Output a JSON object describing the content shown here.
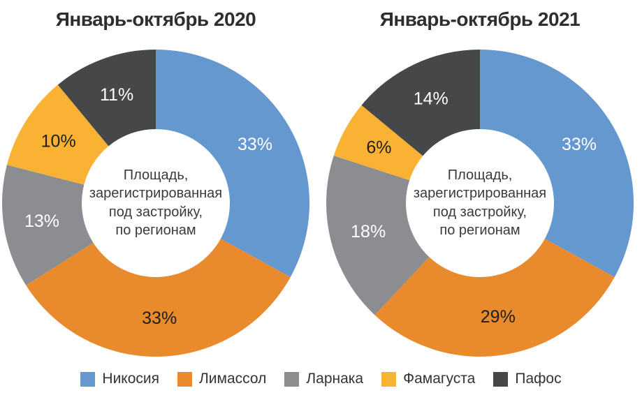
{
  "chart_data": [
    {
      "type": "pie",
      "variant": "donut",
      "title": "Январь-октябрь 2020",
      "center_label_lines": [
        "Площадь,",
        "зарегистрированная",
        "под застройку,",
        "по регионам"
      ],
      "categories": [
        "Никосия",
        "Лимассол",
        "Ларнака",
        "Фамагуста",
        "Пафос"
      ],
      "values": [
        33,
        33,
        13,
        10,
        11
      ],
      "unit": "%",
      "data_labels": [
        "33%",
        "33%",
        "13%",
        "10%",
        "11%"
      ],
      "colors": [
        "#6598CE",
        "#E98B2D",
        "#8B8D90",
        "#F9B234",
        "#464749"
      ],
      "data_label_colors": [
        "#ffffff",
        "#1f1f1f",
        "#ffffff",
        "#1f1f1f",
        "#ffffff"
      ],
      "start_angle_deg": 0,
      "direction": "clockwise",
      "legend_position": "bottom-shared"
    },
    {
      "type": "pie",
      "variant": "donut",
      "title": "Январь-октябрь 2021",
      "center_label_lines": [
        "Площадь,",
        "зарегистрированная",
        "под застройку,",
        "по регионам"
      ],
      "categories": [
        "Никосия",
        "Лимассол",
        "Ларнака",
        "Фамагуста",
        "Пафос"
      ],
      "values": [
        33,
        29,
        18,
        6,
        14
      ],
      "unit": "%",
      "data_labels": [
        "33%",
        "29%",
        "18%",
        "6%",
        "14%"
      ],
      "colors": [
        "#6598CE",
        "#E98B2D",
        "#8B8D90",
        "#F9B234",
        "#464749"
      ],
      "data_label_colors": [
        "#ffffff",
        "#1f1f1f",
        "#ffffff",
        "#1f1f1f",
        "#ffffff"
      ],
      "start_angle_deg": 0,
      "direction": "clockwise",
      "legend_position": "bottom-shared"
    }
  ],
  "legend": {
    "items": [
      {
        "label": "Никосия",
        "color": "#6598CE"
      },
      {
        "label": "Лимассол",
        "color": "#E98B2D"
      },
      {
        "label": "Ларнака",
        "color": "#8B8D90"
      },
      {
        "label": "Фамагуста",
        "color": "#F9B234"
      },
      {
        "label": "Пафос",
        "color": "#464749"
      }
    ]
  },
  "styles": {
    "background": "#ffffff",
    "title_color": "#2e2e2e",
    "center_text_color": "#3a3a3a"
  }
}
